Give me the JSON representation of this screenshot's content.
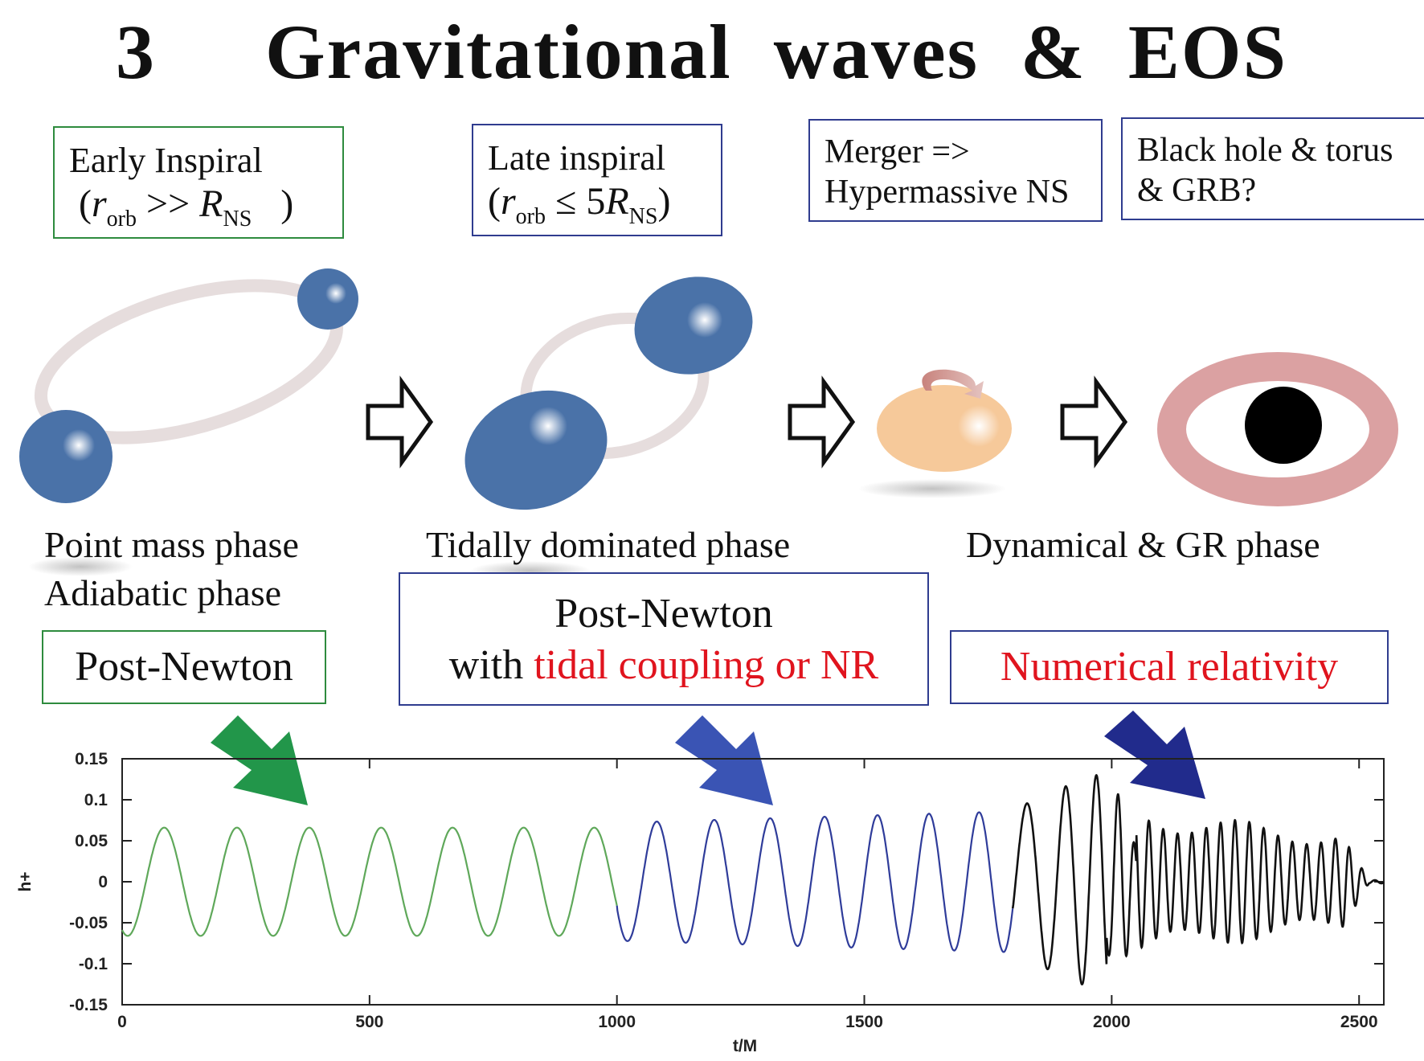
{
  "title": {
    "number": "3",
    "word1": "Gravitational",
    "word2": "waves",
    "word3": "&",
    "word4": "EOS"
  },
  "stages": [
    {
      "line1": "Early Inspiral",
      "cond_var": "r",
      "cond_sub": "orb",
      "cond_op": ">>",
      "cond_R": "R",
      "cond_R_sub": "NS"
    },
    {
      "line1": "Late inspiral",
      "cond_var": "r",
      "cond_sub": "orb",
      "cond_op": "≤ 5",
      "cond_R": "R",
      "cond_R_sub": "NS"
    },
    {
      "line1": "Merger =>",
      "line2": "Hypermassive NS"
    },
    {
      "line1": "Black hole & torus",
      "line2": "& GRB?"
    }
  ],
  "phases": {
    "left_line1": "Point mass phase",
    "left_line2": "Adiabatic  phase",
    "middle": "Tidally dominated phase",
    "right": "Dynamical & GR  phase"
  },
  "methods": {
    "pn": "Post-Newton",
    "pn_tidal_line1": "Post-Newton",
    "pn_tidal_with": "with ",
    "pn_tidal_red": "tidal coupling or NR",
    "nr": "Numerical  relativity"
  },
  "colors": {
    "green": "#2e8b3e",
    "blue": "#2f3c8f",
    "red": "#e0141e",
    "star": "#4a72a8",
    "hmns": "#f6c99a",
    "torus": "#dba1a2"
  },
  "chart_data": {
    "type": "line",
    "title": "",
    "xlabel": "t/M",
    "ylabel": "h+",
    "xlim": [
      0,
      2550
    ],
    "ylim": [
      -0.15,
      0.15
    ],
    "xticks": [
      0,
      500,
      1000,
      1500,
      2000,
      2500
    ],
    "yticks": [
      0.15,
      0.1,
      0.05,
      0,
      -0.05,
      -0.1,
      -0.15
    ],
    "xtick_labels": [
      "0",
      "500",
      "1000",
      "1500",
      "2000",
      "2500"
    ],
    "ytick_labels": [
      "0.15",
      "0.1",
      "0.05",
      "0",
      "-0.05",
      "-0.1",
      "-0.15"
    ],
    "series": [
      {
        "name": "Post-Newton",
        "color": "#5fa85a",
        "t_range": [
          0,
          1000
        ],
        "amplitude": 0.066,
        "period_start": 148,
        "period_end": 142
      },
      {
        "name": "Post-Newton with tidal coupling or NR",
        "color": "#2f3c9a",
        "t_range": [
          1000,
          1800
        ],
        "amplitude_start": 0.072,
        "amplitude_end": 0.086,
        "period_start": 120,
        "period_end": 98
      },
      {
        "name": "Numerical relativity",
        "color": "#111111",
        "t_range": [
          1800,
          2550
        ],
        "peak_amplitude": 0.13,
        "merger_t": 1990,
        "post_merger_amplitude": 0.07,
        "post_merger_period": 29,
        "ringdown_end": 2480
      }
    ]
  }
}
